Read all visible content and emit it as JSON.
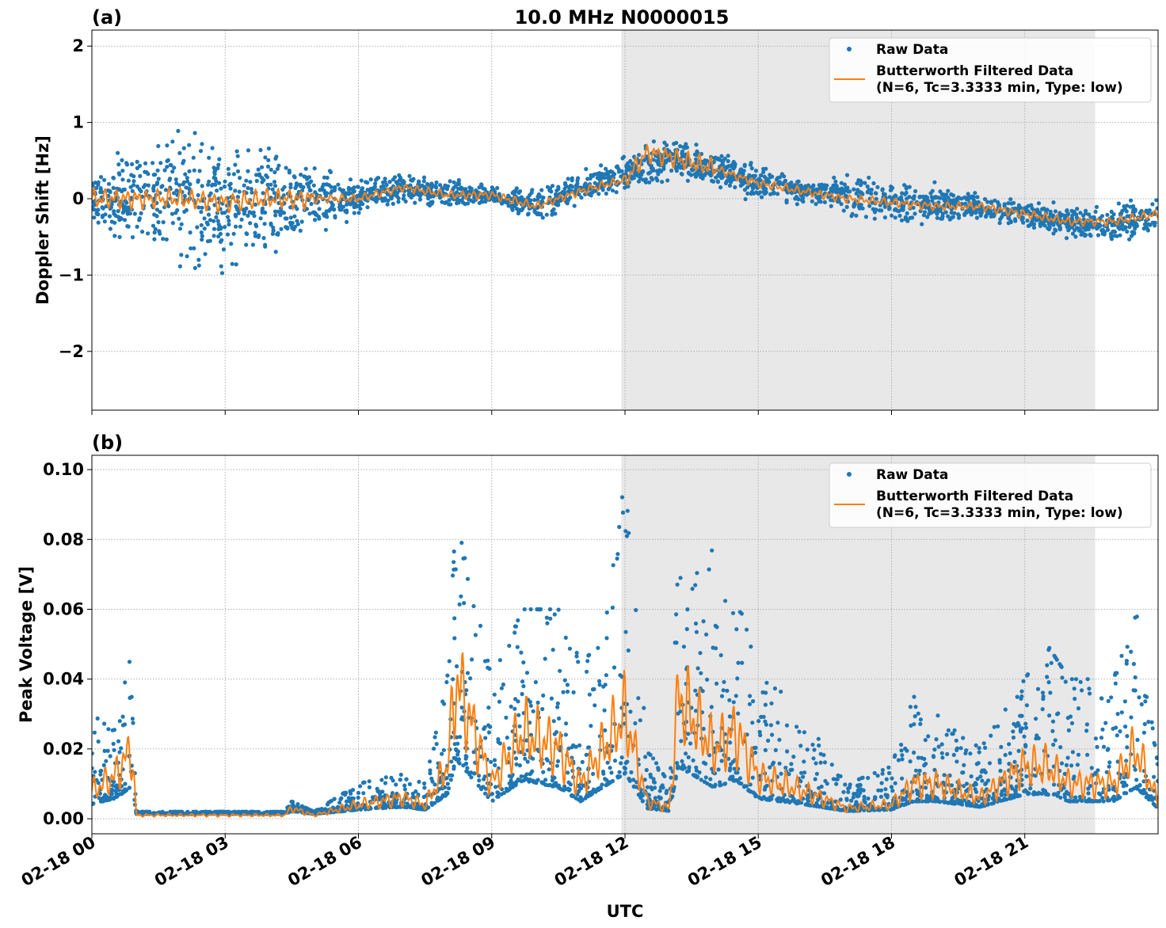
{
  "title": "10.0 MHz N0000015",
  "xlabel": "UTC",
  "x_ticks": [
    "02-18 00",
    "02-18 03",
    "02-18 06",
    "02-18 09",
    "02-18 12",
    "02-18 15",
    "02-18 18",
    "02-18 21"
  ],
  "x_range": [
    "02-18 00:00",
    "02-19 00:00"
  ],
  "shaded_interval": [
    "02-18 11:55",
    "02-18 22:35"
  ],
  "colors": {
    "raw": "#1f77b4",
    "filtered": "#ff7f0e",
    "shade": "#e8e8e8"
  },
  "legend": {
    "raw": "Raw Data",
    "filtered_line1": "Butterworth Filtered Data",
    "filtered_line2": "(N=6, Tc=3.3333 min, Type: low)",
    "placement": "top-right"
  },
  "chart_data": [
    {
      "type": "scatter+line",
      "panel_label": "(a)",
      "ylabel": "Doppler Shift [Hz]",
      "ylim": [
        -2.77,
        2.21
      ],
      "y_ticks": [
        "2",
        "1",
        "0",
        "−1",
        "−2"
      ],
      "y_tick_values": [
        2,
        1,
        0,
        -1,
        -2
      ],
      "grid": true,
      "series": [
        {
          "name": "Raw Data",
          "kind": "scatter_envelope",
          "x": [
            "02-18 00:00",
            "02-18 01:00",
            "02-18 02:00",
            "02-18 03:00",
            "02-18 04:00",
            "02-18 05:00",
            "02-18 06:00",
            "02-18 07:00",
            "02-18 08:00",
            "02-18 09:00",
            "02-18 10:00",
            "02-18 11:00",
            "02-18 12:00",
            "02-18 13:00",
            "02-18 14:00",
            "02-18 15:00",
            "02-18 16:00",
            "02-18 17:00",
            "02-18 18:00",
            "02-18 19:00",
            "02-18 20:00",
            "02-18 21:00",
            "02-18 22:00",
            "02-18 23:00",
            "02-19 00:00"
          ],
          "low": [
            -0.4,
            -1.0,
            -1.2,
            -1.2,
            -1.0,
            -0.6,
            -0.3,
            -0.1,
            -0.2,
            -0.1,
            -0.4,
            -0.1,
            0.0,
            0.2,
            0.1,
            -0.1,
            -0.1,
            -0.3,
            -0.4,
            -0.4,
            -0.3,
            -0.4,
            -0.6,
            -0.7,
            -0.5
          ],
          "high": [
            0.4,
            1.0,
            1.2,
            1.0,
            0.9,
            0.6,
            0.3,
            0.4,
            0.3,
            0.2,
            0.2,
            0.4,
            0.6,
            0.9,
            0.7,
            0.5,
            0.3,
            0.4,
            0.3,
            0.3,
            0.1,
            0.0,
            0.0,
            0.0,
            0.1
          ]
        },
        {
          "name": "Butterworth Filtered Data",
          "kind": "line",
          "x": [
            "02-18 00:00",
            "02-18 01:00",
            "02-18 02:00",
            "02-18 03:00",
            "02-18 04:00",
            "02-18 05:00",
            "02-18 06:00",
            "02-18 07:00",
            "02-18 08:00",
            "02-18 09:00",
            "02-18 10:00",
            "02-18 11:00",
            "02-18 12:00",
            "02-18 12:30",
            "02-18 13:00",
            "02-18 14:00",
            "02-18 15:00",
            "02-18 16:00",
            "02-18 17:00",
            "02-18 18:00",
            "02-18 19:00",
            "02-18 20:00",
            "02-18 21:00",
            "02-18 22:00",
            "02-18 23:00",
            "02-19 00:00"
          ],
          "y": [
            0.0,
            0.0,
            0.0,
            -0.05,
            0.0,
            0.0,
            0.0,
            0.15,
            0.05,
            0.05,
            -0.1,
            0.1,
            0.25,
            0.6,
            0.55,
            0.4,
            0.2,
            0.1,
            0.0,
            -0.05,
            -0.1,
            -0.1,
            -0.2,
            -0.3,
            -0.3,
            -0.2
          ]
        }
      ]
    },
    {
      "type": "scatter+line",
      "panel_label": "(b)",
      "ylabel": "Peak Voltage [V]",
      "ylim": [
        -0.0043,
        0.1041
      ],
      "y_ticks": [
        "0.00",
        "0.02",
        "0.04",
        "0.06",
        "0.08",
        "0.10"
      ],
      "y_tick_values": [
        0,
        0.02,
        0.04,
        0.06,
        0.08,
        0.1
      ],
      "grid": true,
      "series": [
        {
          "name": "Raw Data",
          "kind": "scatter_envelope",
          "x": [
            "02-18 00:00",
            "02-18 00:30",
            "02-18 00:54",
            "02-18 01:00",
            "02-18 04:20",
            "02-18 04:30",
            "02-18 05:00",
            "02-18 06:00",
            "02-18 07:00",
            "02-18 07:30",
            "02-18 08:00",
            "02-18 08:12",
            "02-18 09:00",
            "02-18 09:42",
            "02-18 10:30",
            "02-18 11:00",
            "02-18 11:30",
            "02-18 12:00",
            "02-18 12:30",
            "02-18 13:00",
            "02-18 13:12",
            "02-18 14:00",
            "02-18 14:30",
            "02-18 15:00",
            "02-18 16:00",
            "02-18 17:00",
            "02-18 18:00",
            "02-18 18:30",
            "02-18 19:00",
            "02-18 20:00",
            "02-18 21:00",
            "02-18 21:30",
            "02-18 22:00",
            "02-18 23:00",
            "02-18 23:30",
            "02-19 00:00"
          ],
          "high": [
            0.03,
            0.025,
            0.048,
            0.002,
            0.002,
            0.005,
            0.002,
            0.01,
            0.013,
            0.01,
            0.04,
            0.088,
            0.04,
            0.06,
            0.06,
            0.045,
            0.05,
            0.098,
            0.02,
            0.01,
            0.074,
            0.077,
            0.067,
            0.043,
            0.03,
            0.01,
            0.015,
            0.035,
            0.03,
            0.02,
            0.04,
            0.05,
            0.04,
            0.04,
            0.06,
            0.015
          ]
        },
        {
          "name": "Butterworth Filtered Data",
          "kind": "line",
          "x": [
            "02-18 00:00",
            "02-18 00:30",
            "02-18 00:54",
            "02-18 01:00",
            "02-18 04:20",
            "02-18 04:30",
            "02-18 05:00",
            "02-18 06:00",
            "02-18 07:00",
            "02-18 07:30",
            "02-18 08:00",
            "02-18 08:12",
            "02-18 09:00",
            "02-18 09:42",
            "02-18 10:30",
            "02-18 11:00",
            "02-18 11:30",
            "02-18 12:00",
            "02-18 12:30",
            "02-18 13:00",
            "02-18 13:12",
            "02-18 14:00",
            "02-18 14:30",
            "02-18 15:00",
            "02-18 16:00",
            "02-18 17:00",
            "02-18 18:00",
            "02-18 18:30",
            "02-18 19:00",
            "02-18 20:00",
            "02-18 21:00",
            "02-18 21:30",
            "02-18 22:00",
            "02-18 23:00",
            "02-18 23:30",
            "02-19 00:00"
          ],
          "y": [
            0.008,
            0.012,
            0.02,
            0.001,
            0.001,
            0.003,
            0.001,
            0.004,
            0.006,
            0.004,
            0.015,
            0.04,
            0.01,
            0.025,
            0.02,
            0.01,
            0.02,
            0.03,
            0.005,
            0.003,
            0.035,
            0.02,
            0.025,
            0.012,
            0.008,
            0.003,
            0.004,
            0.01,
            0.01,
            0.006,
            0.015,
            0.015,
            0.01,
            0.01,
            0.02,
            0.005
          ]
        }
      ]
    }
  ]
}
